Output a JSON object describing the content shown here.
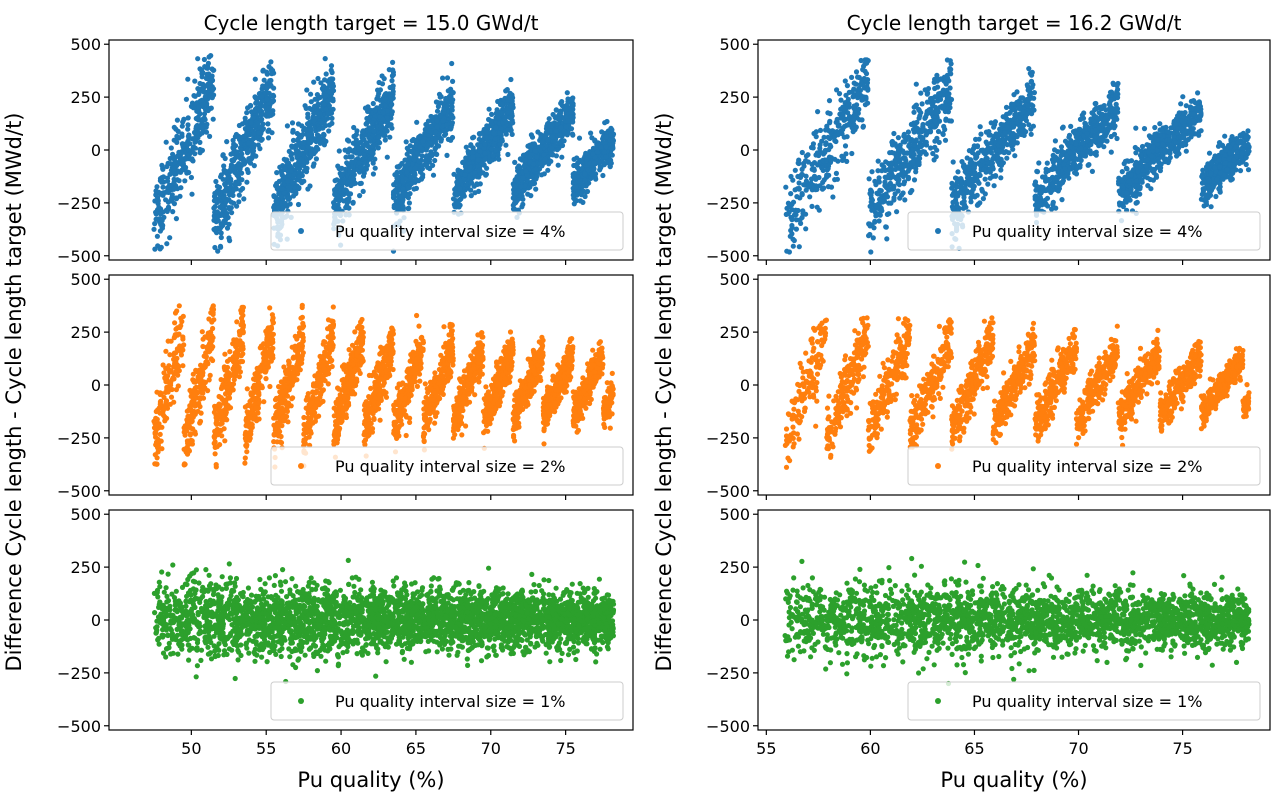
{
  "figure": {
    "ylabel": "Difference Cycle length - Cycle length target (MWd/t)",
    "xlabel": "Pu quality (%)"
  },
  "colors": {
    "4%": "#1f77b4",
    "2%": "#ff7f0e",
    "1%": "#2ca02c"
  },
  "chart_data": [
    {
      "type": "scatter",
      "title": "Cycle length target = 15.0 GWd/t",
      "panel_column": "left",
      "panel_row": 1,
      "series": [
        {
          "name": "Pu quality interval size = 4%",
          "color": "#1f77b4",
          "pattern": "sawtooth",
          "interval": 4,
          "x_range": [
            47.5,
            78.2
          ],
          "y_range": [
            -480,
            460
          ],
          "approx_points": 3500
        }
      ],
      "xlim": [
        44.5,
        79.5
      ],
      "ylim": [
        -520,
        520
      ],
      "yticks": [
        -500,
        -250,
        0,
        250,
        500
      ],
      "xticks": [
        50,
        55,
        60,
        65,
        70,
        75
      ],
      "show_xticklabels": false,
      "legend": "lower right",
      "grid": false
    },
    {
      "type": "scatter",
      "title": "",
      "panel_column": "left",
      "panel_row": 2,
      "series": [
        {
          "name": "Pu quality interval size = 2%",
          "color": "#ff7f0e",
          "pattern": "sawtooth",
          "interval": 2,
          "x_range": [
            47.5,
            78.2
          ],
          "y_range": [
            -390,
            380
          ],
          "approx_points": 3500
        }
      ],
      "xlim": [
        44.5,
        79.5
      ],
      "ylim": [
        -520,
        520
      ],
      "yticks": [
        -500,
        -250,
        0,
        250,
        500
      ],
      "xticks": [
        50,
        55,
        60,
        65,
        70,
        75
      ],
      "show_xticklabels": false,
      "legend": "lower right",
      "grid": false
    },
    {
      "type": "scatter",
      "title": "",
      "panel_column": "left",
      "panel_row": 3,
      "series": [
        {
          "name": "Pu quality interval size = 1%",
          "color": "#2ca02c",
          "pattern": "noise",
          "interval": 1,
          "x_range": [
            47.5,
            78.2
          ],
          "y_range": [
            -340,
            320
          ],
          "approx_points": 3500
        }
      ],
      "xlim": [
        44.5,
        79.5
      ],
      "ylim": [
        -520,
        520
      ],
      "yticks": [
        -500,
        -250,
        0,
        250,
        500
      ],
      "xticks": [
        50,
        55,
        60,
        65,
        70,
        75
      ],
      "show_xticklabels": true,
      "xlabel": "Pu quality (%)",
      "legend": "lower right",
      "grid": false
    },
    {
      "type": "scatter",
      "title": "Cycle length target = 16.2 GWd/t",
      "panel_column": "right",
      "panel_row": 1,
      "series": [
        {
          "name": "Pu quality interval size = 4%",
          "color": "#1f77b4",
          "pattern": "sawtooth",
          "interval": 4,
          "x_range": [
            55.9,
            78.2
          ],
          "y_range": [
            -500,
            430
          ],
          "approx_points": 2500
        }
      ],
      "xlim": [
        54.6,
        79.2
      ],
      "ylim": [
        -520,
        520
      ],
      "yticks": [
        -500,
        -250,
        0,
        250,
        500
      ],
      "xticks": [
        55,
        60,
        65,
        70,
        75
      ],
      "show_xticklabels": false,
      "legend": "lower right",
      "grid": false
    },
    {
      "type": "scatter",
      "title": "",
      "panel_column": "right",
      "panel_row": 2,
      "series": [
        {
          "name": "Pu quality interval size = 2%",
          "color": "#ff7f0e",
          "pattern": "sawtooth",
          "interval": 2,
          "x_range": [
            55.9,
            78.2
          ],
          "y_range": [
            -400,
            320
          ],
          "approx_points": 2500
        }
      ],
      "xlim": [
        54.6,
        79.2
      ],
      "ylim": [
        -520,
        520
      ],
      "yticks": [
        -500,
        -250,
        0,
        250,
        500
      ],
      "xticks": [
        55,
        60,
        65,
        70,
        75
      ],
      "show_xticklabels": false,
      "legend": "lower right",
      "grid": false
    },
    {
      "type": "scatter",
      "title": "",
      "panel_column": "right",
      "panel_row": 3,
      "series": [
        {
          "name": "Pu quality interval size = 1%",
          "color": "#2ca02c",
          "pattern": "noise",
          "interval": 1,
          "x_range": [
            55.9,
            78.2
          ],
          "y_range": [
            -360,
            330
          ],
          "approx_points": 2500
        }
      ],
      "xlim": [
        54.6,
        79.2
      ],
      "ylim": [
        -520,
        520
      ],
      "yticks": [
        -500,
        -250,
        0,
        250,
        500
      ],
      "xticks": [
        55,
        60,
        65,
        70,
        75
      ],
      "show_xticklabels": true,
      "xlabel": "Pu quality (%)",
      "legend": "lower right",
      "grid": false
    }
  ]
}
